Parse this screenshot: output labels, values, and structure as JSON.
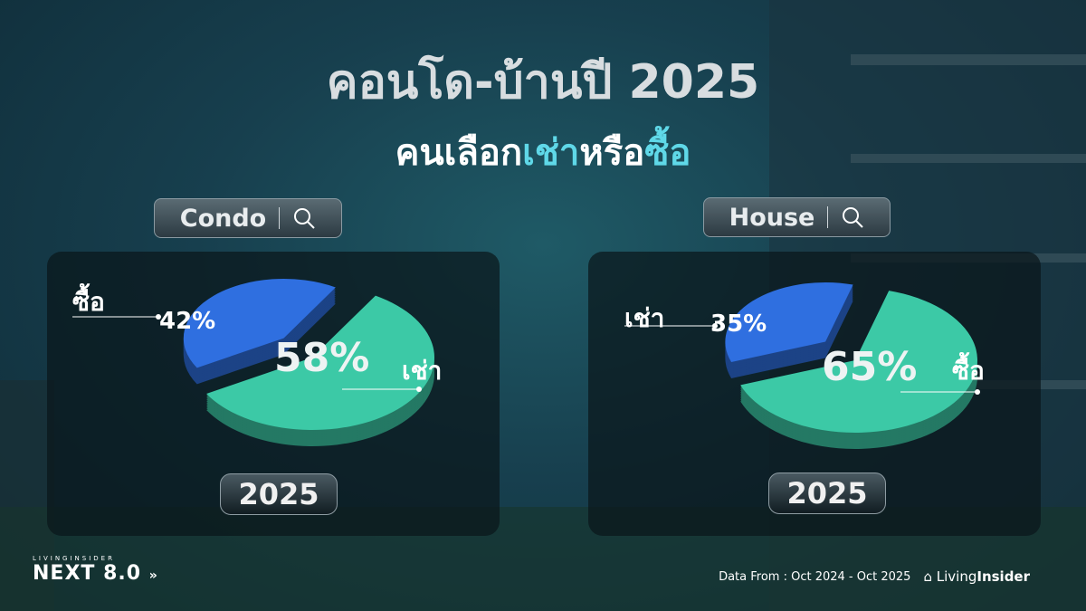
{
  "title": "คอนโด-บ้านปี 2025",
  "subtitle": {
    "before": "คนเลือก",
    "highlight1": "เช่า",
    "middle": "หรือ",
    "highlight2": "ซื้อ"
  },
  "colors": {
    "blue": "#2f6fe0",
    "teal": "#3cc9a6",
    "highlight_text": "#5fd8e8"
  },
  "chart_data": [
    {
      "type": "pie",
      "title": "Condo",
      "year": "2025",
      "slices": [
        {
          "label": "ซื้อ",
          "value": 42,
          "display": "42%",
          "color": "#2f6fe0",
          "exploded": true
        },
        {
          "label": "เช่า",
          "value": 58,
          "display": "58%",
          "color": "#3cc9a6"
        }
      ]
    },
    {
      "type": "pie",
      "title": "House",
      "year": "2025",
      "slices": [
        {
          "label": "เช่า",
          "value": 35,
          "display": "35%",
          "color": "#2f6fe0",
          "exploded": true
        },
        {
          "label": "ซื้อ",
          "value": 65,
          "display": "65%",
          "color": "#3cc9a6"
        }
      ]
    }
  ],
  "icons": {
    "search": "search-icon",
    "arrow": "chevron-right-icon",
    "logo": "livinginsider-logo-icon"
  },
  "footer": {
    "logo_small": "LIVINGINSIDER",
    "logo_big": "NEXT 8.0",
    "source": "Data From : Oct 2024 - Oct  2025",
    "brand_light": "Living",
    "brand_bold": "Insider"
  }
}
